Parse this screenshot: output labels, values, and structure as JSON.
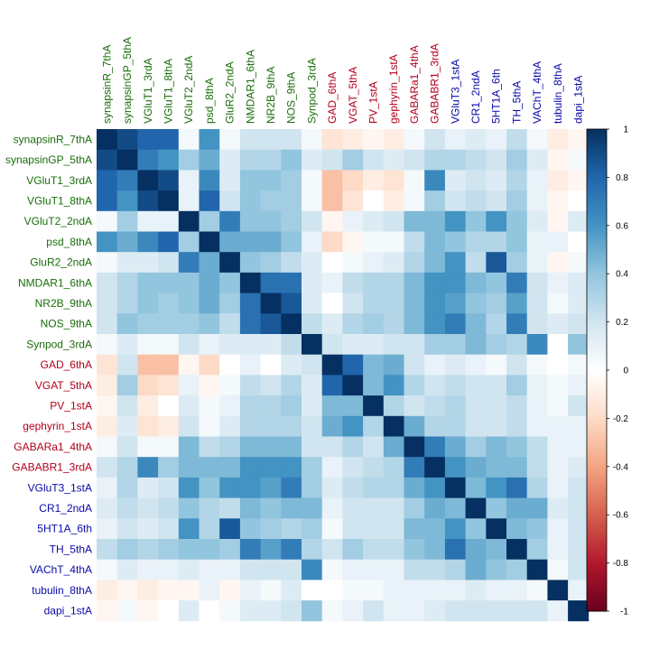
{
  "chart_data": {
    "type": "heatmap",
    "labels": [
      "synapsinR_7thA",
      "synapsinGP_5thA",
      "VGluT1_3rdA",
      "VGluT1_8thA",
      "VGluT2_2ndA",
      "psd_8thA",
      "GluR2_2ndA",
      "NMDAR1_6thA",
      "NR2B_9thA",
      "NOS_9thA",
      "Synpod_3rdA",
      "GAD_6thA",
      "VGAT_5thA",
      "PV_1stA",
      "gephyrin_1stA",
      "GABARa1_4thA",
      "GABABR1_3rdA",
      "VGluT3_1stA",
      "CR1_2ndA",
      "5HT1A_6th",
      "TH_5thA",
      "VAChT_4thA",
      "tubulin_8thA",
      "dapi_1stA"
    ],
    "label_colors": [
      "#1a6d0a",
      "#1a6d0a",
      "#1a6d0a",
      "#1a6d0a",
      "#1a6d0a",
      "#1a6d0a",
      "#1a6d0a",
      "#1a6d0a",
      "#1a6d0a",
      "#1a6d0a",
      "#1a6d0a",
      "#b2001a",
      "#b2001a",
      "#b2001a",
      "#b2001a",
      "#b2001a",
      "#b2001a",
      "#0a0aa8",
      "#0a0aa8",
      "#0a0aa8",
      "#0a0aa8",
      "#0a0aa8",
      "#0a0aa8",
      "#0a0aa8"
    ],
    "matrix": [
      [
        1.0,
        0.9,
        0.8,
        0.8,
        0.05,
        0.6,
        0.05,
        0.2,
        0.2,
        0.2,
        0.05,
        -0.15,
        -0.1,
        -0.05,
        -0.1,
        0.05,
        0.2,
        0.1,
        0.15,
        0.1,
        0.25,
        0.05,
        -0.1,
        -0.05
      ],
      [
        0.9,
        1.0,
        0.7,
        0.6,
        0.35,
        0.5,
        0.15,
        0.3,
        0.3,
        0.4,
        0.15,
        0.2,
        0.35,
        0.2,
        0.15,
        0.2,
        0.3,
        0.3,
        0.25,
        0.2,
        0.35,
        0.15,
        -0.05,
        0.05
      ],
      [
        0.8,
        0.7,
        1.0,
        0.9,
        0.1,
        0.65,
        0.15,
        0.4,
        0.4,
        0.35,
        0.05,
        -0.3,
        -0.2,
        -0.1,
        -0.15,
        0.05,
        0.65,
        0.15,
        0.2,
        0.15,
        0.3,
        0.1,
        -0.1,
        -0.05
      ],
      [
        0.8,
        0.6,
        0.9,
        1.0,
        0.1,
        0.8,
        0.2,
        0.4,
        0.35,
        0.35,
        0.05,
        -0.3,
        -0.15,
        0.0,
        -0.1,
        0.05,
        0.35,
        0.2,
        0.25,
        0.2,
        0.35,
        0.1,
        -0.05,
        0.0
      ],
      [
        0.05,
        0.35,
        0.1,
        0.1,
        1.0,
        0.35,
        0.7,
        0.4,
        0.4,
        0.35,
        0.2,
        -0.05,
        0.1,
        0.15,
        0.2,
        0.45,
        0.45,
        0.6,
        0.4,
        0.6,
        0.4,
        0.15,
        -0.05,
        0.15
      ],
      [
        0.6,
        0.5,
        0.65,
        0.8,
        0.35,
        1.0,
        0.5,
        0.5,
        0.5,
        0.4,
        0.1,
        -0.2,
        -0.05,
        0.05,
        0.05,
        0.25,
        0.45,
        0.4,
        0.3,
        0.3,
        0.4,
        0.1,
        0.1,
        0.0
      ],
      [
        0.05,
        0.15,
        0.15,
        0.2,
        0.7,
        0.5,
        1.0,
        0.4,
        0.35,
        0.25,
        0.15,
        0.0,
        0.05,
        0.1,
        0.15,
        0.3,
        0.45,
        0.6,
        0.25,
        0.85,
        0.35,
        0.1,
        -0.05,
        0.05
      ],
      [
        0.2,
        0.3,
        0.4,
        0.4,
        0.4,
        0.5,
        0.4,
        1.0,
        0.75,
        0.75,
        0.15,
        0.1,
        0.25,
        0.3,
        0.3,
        0.45,
        0.6,
        0.6,
        0.45,
        0.4,
        0.7,
        0.2,
        0.1,
        0.15
      ],
      [
        0.2,
        0.3,
        0.4,
        0.35,
        0.4,
        0.5,
        0.35,
        0.75,
        1.0,
        0.85,
        0.15,
        0.0,
        0.2,
        0.3,
        0.3,
        0.45,
        0.6,
        0.55,
        0.4,
        0.35,
        0.55,
        0.2,
        0.05,
        0.15
      ],
      [
        0.2,
        0.4,
        0.35,
        0.35,
        0.35,
        0.4,
        0.25,
        0.75,
        0.85,
        1.0,
        0.25,
        0.15,
        0.3,
        0.35,
        0.3,
        0.45,
        0.6,
        0.7,
        0.45,
        0.3,
        0.7,
        0.2,
        0.15,
        0.2
      ],
      [
        0.05,
        0.15,
        0.05,
        0.05,
        0.2,
        0.1,
        0.15,
        0.15,
        0.15,
        0.25,
        1.0,
        0.2,
        0.15,
        0.15,
        0.2,
        0.2,
        0.35,
        0.35,
        0.45,
        0.35,
        0.3,
        0.65,
        0.0,
        0.4
      ],
      [
        -0.15,
        0.2,
        -0.3,
        -0.3,
        -0.05,
        -0.2,
        0.0,
        0.1,
        0.0,
        0.15,
        0.2,
        1.0,
        0.8,
        0.45,
        0.5,
        0.2,
        0.1,
        0.15,
        0.1,
        0.05,
        0.2,
        0.05,
        0.0,
        0.05
      ],
      [
        -0.1,
        0.35,
        -0.2,
        -0.15,
        0.1,
        -0.05,
        0.05,
        0.25,
        0.2,
        0.3,
        0.15,
        0.8,
        1.0,
        0.45,
        0.6,
        0.3,
        0.2,
        0.25,
        0.2,
        0.2,
        0.35,
        0.1,
        0.05,
        0.1
      ],
      [
        -0.05,
        0.2,
        -0.1,
        0.0,
        0.15,
        0.05,
        0.1,
        0.3,
        0.3,
        0.35,
        0.15,
        0.45,
        0.45,
        1.0,
        0.3,
        0.2,
        0.25,
        0.3,
        0.2,
        0.2,
        0.25,
        0.1,
        0.05,
        0.2
      ],
      [
        -0.1,
        0.15,
        -0.15,
        -0.1,
        0.2,
        0.05,
        0.15,
        0.3,
        0.3,
        0.3,
        0.2,
        0.5,
        0.6,
        0.3,
        1.0,
        0.5,
        0.3,
        0.3,
        0.2,
        0.2,
        0.25,
        0.1,
        0.1,
        0.1
      ],
      [
        0.05,
        0.2,
        0.05,
        0.05,
        0.45,
        0.25,
        0.3,
        0.45,
        0.45,
        0.45,
        0.2,
        0.2,
        0.3,
        0.2,
        0.5,
        1.0,
        0.7,
        0.5,
        0.35,
        0.45,
        0.4,
        0.25,
        0.1,
        0.1
      ],
      [
        0.2,
        0.3,
        0.65,
        0.35,
        0.45,
        0.45,
        0.45,
        0.6,
        0.6,
        0.6,
        0.35,
        0.1,
        0.2,
        0.25,
        0.3,
        0.7,
        1.0,
        0.6,
        0.5,
        0.45,
        0.45,
        0.25,
        0.1,
        0.15
      ],
      [
        0.1,
        0.3,
        0.15,
        0.2,
        0.6,
        0.4,
        0.6,
        0.6,
        0.55,
        0.7,
        0.35,
        0.15,
        0.25,
        0.3,
        0.3,
        0.5,
        0.6,
        1.0,
        0.45,
        0.6,
        0.75,
        0.3,
        0.1,
        0.2
      ],
      [
        0.15,
        0.25,
        0.2,
        0.25,
        0.4,
        0.3,
        0.25,
        0.45,
        0.4,
        0.45,
        0.45,
        0.1,
        0.2,
        0.2,
        0.2,
        0.35,
        0.5,
        0.45,
        1.0,
        0.4,
        0.5,
        0.5,
        0.15,
        0.2
      ],
      [
        0.1,
        0.2,
        0.15,
        0.2,
        0.6,
        0.3,
        0.85,
        0.4,
        0.35,
        0.3,
        0.35,
        0.05,
        0.2,
        0.2,
        0.2,
        0.45,
        0.45,
        0.6,
        0.4,
        1.0,
        0.45,
        0.4,
        0.1,
        0.2
      ],
      [
        0.25,
        0.35,
        0.3,
        0.35,
        0.4,
        0.4,
        0.35,
        0.7,
        0.55,
        0.7,
        0.3,
        0.2,
        0.35,
        0.25,
        0.25,
        0.4,
        0.45,
        0.75,
        0.5,
        0.45,
        1.0,
        0.35,
        0.1,
        0.2
      ],
      [
        0.05,
        0.15,
        0.1,
        0.1,
        0.15,
        0.1,
        0.1,
        0.2,
        0.2,
        0.2,
        0.65,
        0.05,
        0.1,
        0.1,
        0.1,
        0.25,
        0.25,
        0.3,
        0.5,
        0.4,
        0.35,
        1.0,
        0.05,
        0.2
      ],
      [
        -0.1,
        -0.05,
        -0.1,
        -0.05,
        -0.05,
        0.1,
        -0.05,
        0.1,
        0.05,
        0.15,
        0.0,
        0.0,
        0.05,
        0.05,
        0.1,
        0.1,
        0.1,
        0.1,
        0.15,
        0.1,
        0.1,
        0.05,
        1.0,
        0.1
      ],
      [
        -0.05,
        0.05,
        -0.05,
        0.0,
        0.15,
        0.0,
        0.05,
        0.15,
        0.15,
        0.2,
        0.4,
        0.05,
        0.1,
        0.2,
        0.1,
        0.1,
        0.15,
        0.2,
        0.2,
        0.2,
        0.2,
        0.2,
        0.1,
        1.0
      ]
    ],
    "color_scale": {
      "min": -1,
      "max": 1,
      "ticks": [
        1,
        0.8,
        0.6,
        0.4,
        0.2,
        0,
        -0.2,
        -0.4,
        -0.6,
        -0.8,
        -1
      ]
    },
    "color_stops": [
      "#67001f",
      "#b2182b",
      "#d6604d",
      "#f4a582",
      "#fddbc7",
      "#ffffff",
      "#d1e5f0",
      "#92c5de",
      "#4393c3",
      "#2166ac",
      "#053061"
    ],
    "title": "",
    "xlabel": "",
    "ylabel": ""
  }
}
